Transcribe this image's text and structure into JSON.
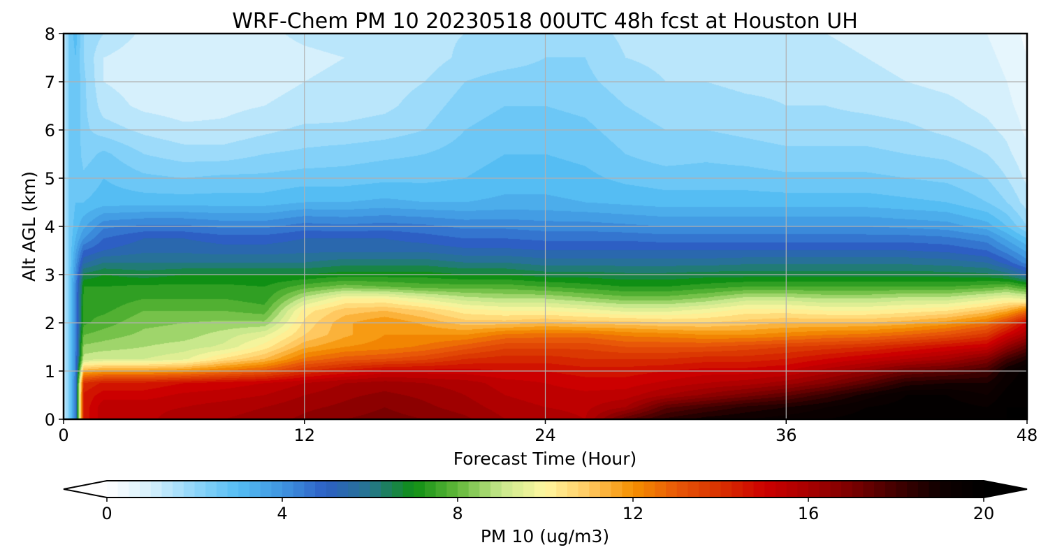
{
  "chart_data": {
    "type": "heatmap",
    "title": "WRF-Chem PM 10  20230518 00UTC 48h fcst at Houston UH",
    "xlabel": "Forecast Time (Hour)",
    "ylabel": "Alt AGL (km)",
    "xlim": [
      0,
      48
    ],
    "ylim": [
      0,
      8
    ],
    "xticks": [
      "0",
      "12",
      "24",
      "36",
      "48"
    ],
    "yticks": [
      "0",
      "1",
      "2",
      "3",
      "4",
      "5",
      "6",
      "7",
      "8"
    ],
    "grid": true,
    "colorbar": {
      "label": "PM 10  (ug/m3)",
      "range": [
        0,
        20
      ],
      "ticks": [
        "0",
        "4",
        "8",
        "12",
        "16",
        "20"
      ],
      "extend": "both",
      "stops": [
        [
          0,
          "#ffffff"
        ],
        [
          1,
          "#d6f0fc"
        ],
        [
          2,
          "#8fd6fa"
        ],
        [
          3,
          "#55bdf3"
        ],
        [
          4,
          "#3f95e0"
        ],
        [
          5,
          "#2d5fc4"
        ],
        [
          6,
          "#26768e"
        ],
        [
          7,
          "#0f8f14"
        ],
        [
          8,
          "#62b83a"
        ],
        [
          9,
          "#c8e88c"
        ],
        [
          10,
          "#fff7a0"
        ],
        [
          11,
          "#ffc860"
        ],
        [
          12,
          "#f59000"
        ],
        [
          13,
          "#e85808"
        ],
        [
          14,
          "#d83000"
        ],
        [
          15,
          "#cc0000"
        ],
        [
          16,
          "#a80000"
        ],
        [
          17,
          "#7a0000"
        ],
        [
          18,
          "#420000"
        ],
        [
          19,
          "#100000"
        ],
        [
          20,
          "#000000"
        ]
      ]
    },
    "series": [
      {
        "name": "",
        "hours": [
          0,
          0.3,
          0.6,
          1,
          2,
          4,
          6,
          8,
          10,
          12,
          14,
          16,
          18,
          20,
          22,
          24,
          26,
          28,
          30,
          32,
          34,
          36,
          38,
          40,
          42,
          44,
          46,
          47,
          48
        ],
        "altitudes_km": [
          0,
          0.25,
          0.5,
          0.75,
          1,
          1.25,
          1.5,
          1.75,
          2,
          2.25,
          2.5,
          2.75,
          3,
          3.25,
          3.5,
          3.75,
          4,
          4.5,
          5,
          5.5,
          6,
          6.5,
          7,
          7.5,
          8
        ],
        "pm10_ug_m3_profiles": [
          [
            1.0,
            1.0,
            1.0,
            1.0,
            1.0,
            1.0,
            1.0,
            1.0,
            1.0,
            1.0,
            1.0,
            1.0,
            1.0,
            1.0,
            1.0,
            1.0,
            1.0,
            1.0,
            1.0,
            1.0,
            1.0,
            1.0,
            1.0,
            1.0,
            1.0
          ],
          [
            2.5,
            2.5,
            2.5,
            2.5,
            2.5,
            2.5,
            2.5,
            2.5,
            2.5,
            2.5,
            2.5,
            2.5,
            2.5,
            2.5,
            2.5,
            2.5,
            2.5,
            2.5,
            2.5,
            2.5,
            2.5,
            2.5,
            2.5,
            2.5,
            2.5
          ],
          [
            4.5,
            4.5,
            4.5,
            4.5,
            4.3,
            4.3,
            4.3,
            4.2,
            4.2,
            4.2,
            4.2,
            4.2,
            4.0,
            3.8,
            3.5,
            3.2,
            3.0,
            2.8,
            2.8,
            2.8,
            2.8,
            2.8,
            2.8,
            2.8,
            3.0
          ],
          [
            14.5,
            14.5,
            14.5,
            14.0,
            11.5,
            9.0,
            8.5,
            8.0,
            7.5,
            7.5,
            7.3,
            7.2,
            6.5,
            5.5,
            4.8,
            4.0,
            3.5,
            2.8,
            2.5,
            2.2,
            2.1,
            2.1,
            2.1,
            2.0,
            2.0
          ],
          [
            15.5,
            15.5,
            15.0,
            14.5,
            11.8,
            9.2,
            8.6,
            8.2,
            7.8,
            7.5,
            7.3,
            7.2,
            6.8,
            6.0,
            5.2,
            4.8,
            4.3,
            3.0,
            2.8,
            2.5,
            1.8,
            1.4,
            1.2,
            1.2,
            1.6
          ],
          [
            15.5,
            15.5,
            15.0,
            14.5,
            11.8,
            9.2,
            8.8,
            8.5,
            8.3,
            8.0,
            7.6,
            7.3,
            6.6,
            6.0,
            5.5,
            5.2,
            4.5,
            3.0,
            2.5,
            2.0,
            1.5,
            1.1,
            1.0,
            0.9,
            1.1
          ],
          [
            15.8,
            15.6,
            15.3,
            14.8,
            12.0,
            9.5,
            9.0,
            8.6,
            8.4,
            8.0,
            7.6,
            7.3,
            6.8,
            6.0,
            5.5,
            5.2,
            4.5,
            3.0,
            2.4,
            1.8,
            1.3,
            1.0,
            0.9,
            0.8,
            1.0
          ],
          [
            16.0,
            15.8,
            15.4,
            15.0,
            12.5,
            10.5,
            9.3,
            9.0,
            8.5,
            8.0,
            7.6,
            7.3,
            6.8,
            6.0,
            5.4,
            5.0,
            4.3,
            3.0,
            2.5,
            1.8,
            1.3,
            1.1,
            1.0,
            0.9,
            1.0
          ],
          [
            16.2,
            16.0,
            15.6,
            15.2,
            13.0,
            11.2,
            10.2,
            9.5,
            8.5,
            7.8,
            7.4,
            7.2,
            6.8,
            6.0,
            5.4,
            5.0,
            4.3,
            3.0,
            2.5,
            2.0,
            1.5,
            1.2,
            1.1,
            1.0,
            1.1
          ],
          [
            16.5,
            16.3,
            16.0,
            15.6,
            14.0,
            12.5,
            11.5,
            10.8,
            10.5,
            10.2,
            9.0,
            7.8,
            6.8,
            6.0,
            5.5,
            5.2,
            4.6,
            3.2,
            2.6,
            2.1,
            1.7,
            1.3,
            1.2,
            1.1,
            1.3
          ],
          [
            16.8,
            16.5,
            16.3,
            16.0,
            14.5,
            13.0,
            12.0,
            11.5,
            11.5,
            11.0,
            10.0,
            8.2,
            7.0,
            6.2,
            5.5,
            5.2,
            4.5,
            3.2,
            2.6,
            2.2,
            1.7,
            1.4,
            1.3,
            1.2,
            1.4
          ],
          [
            17.0,
            16.8,
            16.5,
            16.2,
            15.0,
            13.2,
            12.2,
            12.0,
            12.0,
            11.2,
            10.0,
            8.0,
            7.0,
            6.2,
            5.5,
            5.2,
            4.6,
            3.3,
            2.7,
            2.3,
            1.8,
            1.5,
            1.4,
            1.3,
            1.4
          ],
          [
            16.8,
            16.5,
            16.3,
            16.0,
            15.0,
            13.5,
            12.5,
            12.0,
            11.5,
            10.8,
            9.5,
            7.8,
            7.0,
            6.2,
            5.5,
            5.0,
            4.5,
            3.2,
            2.7,
            2.4,
            2.0,
            1.8,
            1.6,
            1.4,
            1.5
          ],
          [
            16.5,
            16.2,
            16.0,
            15.8,
            15.0,
            14.0,
            13.0,
            12.0,
            11.0,
            10.2,
            9.0,
            7.8,
            6.8,
            6.0,
            5.3,
            4.8,
            4.3,
            3.2,
            2.8,
            2.6,
            2.4,
            2.2,
            2.0,
            1.7,
            1.6
          ],
          [
            16.0,
            15.8,
            15.6,
            15.4,
            14.8,
            14.2,
            13.5,
            12.5,
            11.0,
            10.0,
            8.8,
            7.8,
            6.8,
            6.0,
            5.3,
            4.8,
            4.3,
            3.3,
            3.0,
            2.8,
            2.6,
            2.4,
            2.2,
            1.8,
            1.7
          ],
          [
            15.8,
            15.6,
            15.4,
            15.2,
            14.8,
            14.2,
            13.5,
            12.6,
            11.2,
            10.0,
            8.8,
            7.6,
            6.6,
            5.8,
            5.2,
            4.7,
            4.2,
            3.3,
            3.0,
            2.8,
            2.6,
            2.4,
            2.2,
            2.0,
            1.8
          ],
          [
            15.6,
            15.5,
            15.3,
            15.0,
            14.6,
            14.0,
            13.5,
            12.6,
            11.0,
            9.8,
            8.5,
            7.4,
            6.6,
            5.8,
            5.2,
            4.7,
            4.2,
            3.2,
            2.9,
            2.7,
            2.5,
            2.3,
            2.1,
            2.0,
            1.8
          ],
          [
            17.5,
            16.0,
            15.4,
            15.0,
            14.6,
            14.0,
            13.2,
            12.3,
            11.0,
            9.5,
            8.2,
            7.2,
            6.5,
            5.8,
            5.2,
            4.7,
            4.1,
            3.1,
            2.7,
            2.4,
            2.2,
            2.0,
            1.8,
            1.6,
            1.5
          ],
          [
            18.5,
            17.5,
            16.0,
            15.3,
            14.8,
            14.0,
            13.2,
            12.2,
            10.8,
            9.5,
            8.2,
            7.2,
            6.5,
            5.8,
            5.2,
            4.6,
            4.0,
            3.0,
            2.6,
            2.2,
            2.0,
            1.8,
            1.6,
            1.5,
            1.4
          ],
          [
            19.0,
            18.0,
            16.5,
            15.6,
            15.0,
            14.2,
            13.2,
            12.0,
            10.8,
            9.8,
            8.5,
            7.4,
            6.6,
            5.8,
            5.2,
            4.6,
            4.0,
            3.0,
            2.6,
            2.3,
            2.0,
            1.8,
            1.6,
            1.4,
            1.3
          ],
          [
            19.2,
            18.5,
            17.0,
            15.8,
            15.0,
            14.2,
            13.4,
            12.0,
            11.0,
            10.2,
            9.0,
            7.6,
            6.6,
            5.9,
            5.2,
            4.6,
            4.0,
            3.0,
            2.6,
            2.2,
            1.9,
            1.7,
            1.5,
            1.4,
            1.3
          ],
          [
            19.4,
            18.8,
            17.5,
            16.2,
            15.2,
            14.4,
            13.6,
            12.2,
            11.2,
            10.2,
            9.0,
            7.6,
            6.6,
            5.9,
            5.2,
            4.6,
            4.0,
            3.0,
            2.5,
            2.1,
            1.8,
            1.6,
            1.5,
            1.3,
            1.2
          ],
          [
            19.6,
            19.2,
            18.2,
            16.8,
            15.8,
            14.8,
            13.8,
            12.4,
            11.2,
            10.0,
            8.8,
            7.6,
            6.6,
            5.9,
            5.2,
            4.6,
            4.0,
            3.0,
            2.5,
            2.1,
            1.8,
            1.6,
            1.4,
            1.3,
            1.2
          ],
          [
            19.8,
            19.6,
            19.0,
            17.6,
            16.4,
            15.2,
            14.0,
            12.5,
            11.2,
            10.0,
            8.8,
            7.6,
            6.6,
            5.9,
            5.2,
            4.6,
            4.0,
            3.0,
            2.5,
            2.1,
            1.8,
            1.5,
            1.3,
            1.2,
            1.1
          ],
          [
            19.8,
            19.8,
            19.6,
            18.6,
            17.2,
            15.6,
            14.4,
            12.8,
            11.4,
            10.2,
            9.0,
            7.6,
            6.6,
            5.9,
            5.2,
            4.6,
            3.9,
            2.9,
            2.4,
            2.0,
            1.7,
            1.4,
            1.2,
            1.1,
            1.0
          ],
          [
            19.8,
            19.8,
            19.6,
            18.8,
            17.5,
            16.0,
            14.8,
            13.2,
            11.8,
            10.4,
            9.0,
            7.6,
            6.6,
            5.8,
            5.1,
            4.5,
            3.8,
            2.8,
            2.3,
            1.9,
            1.5,
            1.3,
            1.1,
            1.0,
            1.0
          ],
          [
            19.6,
            19.6,
            19.2,
            18.8,
            18.0,
            16.8,
            15.2,
            13.8,
            12.5,
            11.0,
            9.5,
            7.8,
            6.5,
            5.6,
            4.8,
            4.2,
            3.4,
            2.4,
            2.0,
            1.6,
            1.3,
            1.1,
            1.0,
            0.9,
            0.8
          ],
          [
            20.0,
            20.0,
            19.8,
            19.5,
            19.2,
            18.0,
            16.5,
            15.0,
            13.5,
            11.5,
            9.8,
            8.0,
            6.2,
            5.0,
            4.2,
            3.5,
            2.8,
            2.0,
            1.6,
            1.3,
            1.1,
            0.9,
            0.8,
            0.7,
            0.6
          ],
          [
            20.0,
            20.0,
            20.0,
            20.0,
            19.8,
            18.8,
            17.5,
            16.0,
            15.0,
            12.5,
            9.5,
            7.5,
            5.5,
            4.2,
            3.5,
            2.8,
            2.0,
            1.4,
            1.1,
            0.9,
            0.7,
            0.6,
            0.5,
            0.4,
            0.3
          ]
        ]
      }
    ]
  }
}
